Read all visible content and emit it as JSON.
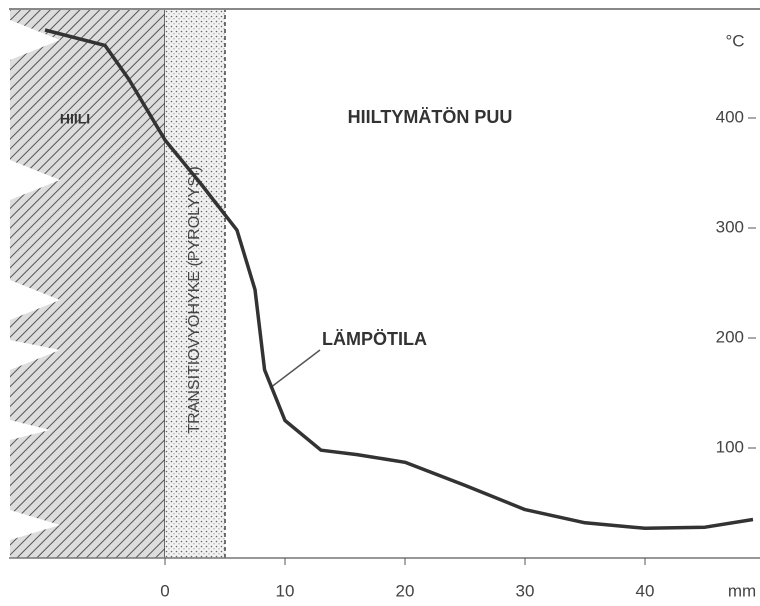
{
  "chart_data": {
    "type": "line",
    "x": [
      -10,
      -5,
      -3,
      0,
      3,
      6,
      7.5,
      8.3,
      10,
      13,
      16,
      20,
      25,
      30,
      35,
      40,
      45,
      49
    ],
    "series": [
      {
        "name": "LÄMPÖTILA",
        "color": "#333333",
        "values": [
          480,
          466,
          435,
          380,
          340,
          298,
          244,
          171,
          125,
          98,
          94,
          87,
          66,
          44,
          32,
          27,
          28,
          35
        ]
      }
    ],
    "xlim": [
      -13,
      50
    ],
    "ylim": [
      0,
      500
    ],
    "xticks": [
      0,
      10,
      20,
      30,
      40
    ],
    "yticks": [
      100,
      200,
      300,
      400
    ],
    "x_unit": "mm",
    "y_unit": "°C",
    "zones": [
      {
        "label": "HIILI",
        "xrange": [
          -13,
          0
        ]
      },
      {
        "label": "TRANSITIOVYÖHYKE (PYROLYYSI)",
        "xrange": [
          0,
          5
        ]
      }
    ],
    "annotations": [
      "HIILTYMÄTÖN PUU"
    ]
  }
}
